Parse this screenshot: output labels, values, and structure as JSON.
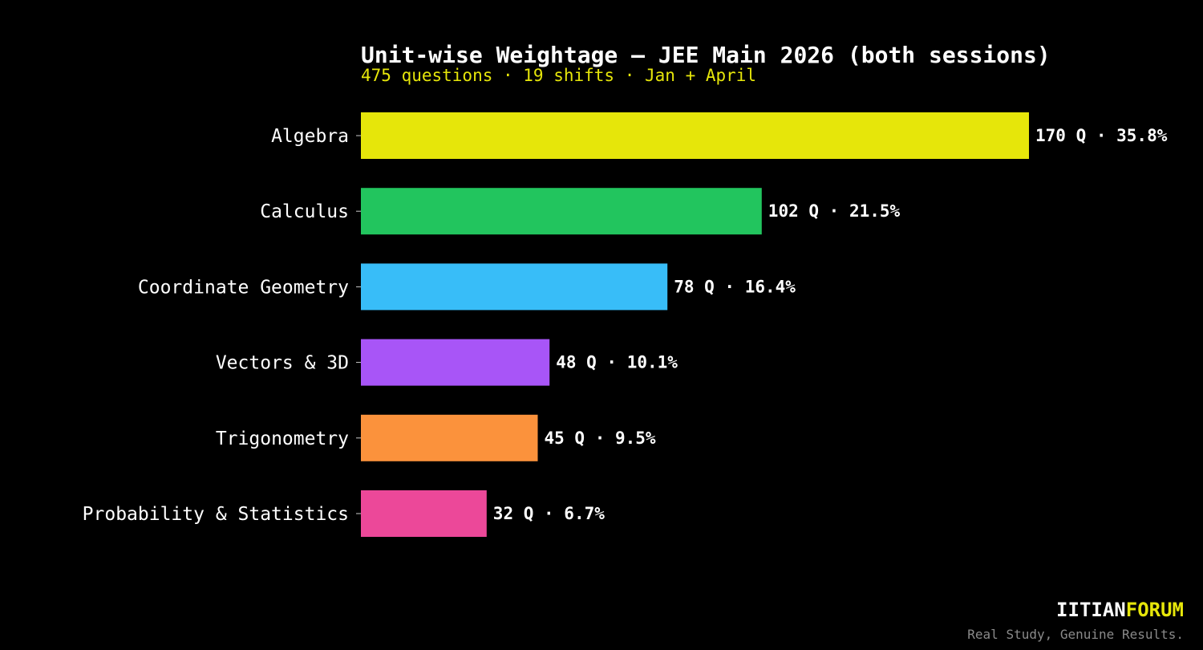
{
  "title": "Unit-wise Weightage — JEE Main 2026 (both sessions)",
  "subtitle": "475 questions · 19 shifts · Jan + April",
  "brand": {
    "part1": "IITIAN",
    "part2": "FORUM",
    "tagline": "Real Study, Genuine Results."
  },
  "colors": {
    "accent": "#e6e60a",
    "background": "#000000",
    "text": "#ffffff",
    "muted": "#8a8a8a"
  },
  "chart_data": {
    "type": "bar",
    "orientation": "horizontal",
    "title": "Unit-wise Weightage — JEE Main 2026 (both sessions)",
    "subtitle": "475 questions · 19 shifts · Jan + April",
    "xlim": [
      0,
      170
    ],
    "grid": false,
    "categories": [
      "Algebra",
      "Calculus",
      "Coordinate Geometry",
      "Vectors & 3D",
      "Trigonometry",
      "Probability & Statistics"
    ],
    "values": [
      170,
      102,
      78,
      48,
      45,
      32
    ],
    "percentages": [
      "35.8%",
      "21.5%",
      "16.4%",
      "10.1%",
      "9.5%",
      "6.7%"
    ],
    "data_labels": [
      "170 Q  ·  35.8%",
      "102 Q  ·  21.5%",
      "78 Q  ·  16.4%",
      "48 Q  ·  10.1%",
      "45 Q  ·  9.5%",
      "32 Q  ·  6.7%"
    ],
    "bar_colors": [
      "#e6e60a",
      "#22c55e",
      "#38bdf8",
      "#a855f7",
      "#fb923c",
      "#ec4899"
    ]
  }
}
